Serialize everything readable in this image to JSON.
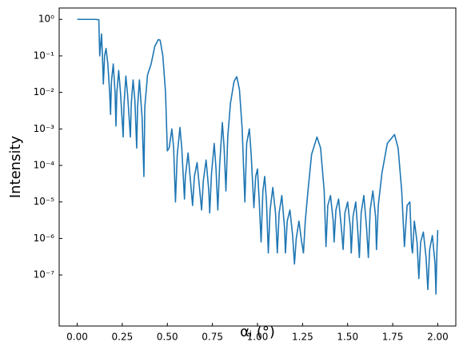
{
  "chart_data": {
    "type": "line",
    "xlabel": "αᵢ (°)",
    "ylabel": "Intensity",
    "x": [
      0,
      0.05,
      0.1,
      0.12,
      0.125,
      0.13,
      0.135,
      0.14,
      0.145,
      0.152,
      0.16,
      0.17,
      0.18,
      0.185,
      0.19,
      0.2,
      0.21,
      0.215,
      0.22,
      0.23,
      0.24,
      0.255,
      0.26,
      0.27,
      0.28,
      0.295,
      0.3,
      0.31,
      0.32,
      0.33,
      0.335,
      0.345,
      0.36,
      0.37,
      0.375,
      0.39,
      0.41,
      0.43,
      0.45,
      0.46,
      0.475,
      0.49,
      0.5,
      0.51,
      0.525,
      0.535,
      0.545,
      0.555,
      0.57,
      0.58,
      0.595,
      0.6,
      0.615,
      0.63,
      0.64,
      0.65,
      0.665,
      0.68,
      0.69,
      0.7,
      0.715,
      0.73,
      0.735,
      0.745,
      0.76,
      0.77,
      0.78,
      0.79,
      0.805,
      0.815,
      0.825,
      0.835,
      0.85,
      0.87,
      0.885,
      0.9,
      0.915,
      0.93,
      0.94,
      0.955,
      0.965,
      0.98,
      0.99,
      1.0,
      1.01,
      1.02,
      1.03,
      1.04,
      1.05,
      1.06,
      1.07,
      1.085,
      1.1,
      1.11,
      1.12,
      1.135,
      1.15,
      1.155,
      1.165,
      1.18,
      1.195,
      1.205,
      1.215,
      1.23,
      1.245,
      1.255,
      1.265,
      1.28,
      1.3,
      1.33,
      1.35,
      1.37,
      1.38,
      1.39,
      1.405,
      1.42,
      1.425,
      1.435,
      1.45,
      1.465,
      1.475,
      1.485,
      1.5,
      1.515,
      1.52,
      1.53,
      1.545,
      1.555,
      1.565,
      1.575,
      1.59,
      1.605,
      1.615,
      1.625,
      1.64,
      1.655,
      1.66,
      1.67,
      1.69,
      1.72,
      1.76,
      1.78,
      1.8,
      1.815,
      1.83,
      1.845,
      1.855,
      1.86,
      1.87,
      1.885,
      1.895,
      1.905,
      1.92,
      1.935,
      1.945,
      1.955,
      1.97,
      1.985,
      1.99,
      1.995,
      2.0
    ],
    "series": [
      {
        "color": "#1f77b4",
        "values": [
          1,
          1,
          1,
          0.98,
          0.1,
          0.2,
          0.4,
          0.1,
          0.017,
          0.1,
          0.16,
          0.06,
          0.01,
          0.0025,
          0.02,
          0.06,
          0.01,
          0.0012,
          0.01,
          0.04,
          0.01,
          0.0006,
          0.005,
          0.028,
          0.008,
          0.0006,
          0.005,
          0.022,
          0.006,
          0.0003,
          0.004,
          0.022,
          0.002,
          5e-05,
          0.004,
          0.03,
          0.06,
          0.18,
          0.28,
          0.27,
          0.1,
          0.01,
          0.00025,
          0.0003,
          0.001,
          0.0003,
          1e-05,
          0.0002,
          0.0011,
          0.0003,
          1.2e-05,
          5e-05,
          0.00022,
          3e-05,
          8e-06,
          5e-05,
          0.00012,
          2e-05,
          6e-06,
          4e-05,
          0.00014,
          2e-05,
          5e-06,
          6e-05,
          0.0004,
          8e-05,
          6e-06,
          0.0001,
          0.0015,
          0.0003,
          2e-05,
          0.0006,
          0.005,
          0.02,
          0.027,
          0.012,
          0.001,
          1e-05,
          0.0004,
          0.001,
          0.0002,
          7e-06,
          5e-05,
          8e-05,
          1e-05,
          8e-07,
          2e-05,
          5e-05,
          1e-05,
          4e-07,
          6e-06,
          2.5e-05,
          5e-06,
          4e-07,
          5e-06,
          1.5e-05,
          2e-06,
          4e-07,
          3e-06,
          6e-06,
          1.2e-06,
          2e-07,
          1e-06,
          3e-06,
          8e-07,
          4e-07,
          3e-06,
          2e-05,
          0.0002,
          0.0006,
          0.0003,
          2e-05,
          6e-07,
          8e-06,
          1.5e-05,
          3e-06,
          8e-07,
          6e-06,
          1.2e-05,
          2e-06,
          5e-07,
          5e-06,
          1e-05,
          2e-06,
          4e-07,
          4e-06,
          1e-05,
          2e-06,
          3e-07,
          5e-06,
          1.5e-05,
          2e-06,
          3e-07,
          6e-06,
          2e-05,
          4e-06,
          5e-07,
          8e-06,
          6e-05,
          0.0004,
          0.0007,
          0.0003,
          2e-05,
          6e-07,
          8e-06,
          1e-05,
          6e-07,
          4e-07,
          3e-06,
          8e-07,
          8e-08,
          8e-07,
          1.5e-06,
          3e-07,
          4e-08,
          5e-07,
          1.2e-06,
          2e-07,
          3e-08,
          4e-07,
          1.7e-06
        ]
      }
    ],
    "xlim": [
      -0.1,
      2.1
    ],
    "xticks": [
      {
        "value": 0,
        "label": "0.00"
      },
      {
        "value": 0.25,
        "label": "0.25"
      },
      {
        "value": 0.5,
        "label": "0.50"
      },
      {
        "value": 0.75,
        "label": "0.75"
      },
      {
        "value": 1,
        "label": "1.00"
      },
      {
        "value": 1.25,
        "label": "1.25"
      },
      {
        "value": 1.5,
        "label": "1.50"
      },
      {
        "value": 1.75,
        "label": "1.75"
      },
      {
        "value": 2,
        "label": "2.00"
      }
    ],
    "ylim": [
      4e-09,
      2.05
    ],
    "ylog": true,
    "yticks": [
      {
        "value": 1,
        "label": "10⁰"
      },
      {
        "value": 0.1,
        "label": "10⁻¹"
      },
      {
        "value": 0.01,
        "label": "10⁻²"
      },
      {
        "value": 0.001,
        "label": "10⁻³"
      },
      {
        "value": 0.0001,
        "label": "10⁻⁴"
      },
      {
        "value": 1e-05,
        "label": "10⁻⁵"
      },
      {
        "value": 1e-06,
        "label": "10⁻⁶"
      },
      {
        "value": 1e-07,
        "label": "10⁻⁷"
      }
    ]
  }
}
